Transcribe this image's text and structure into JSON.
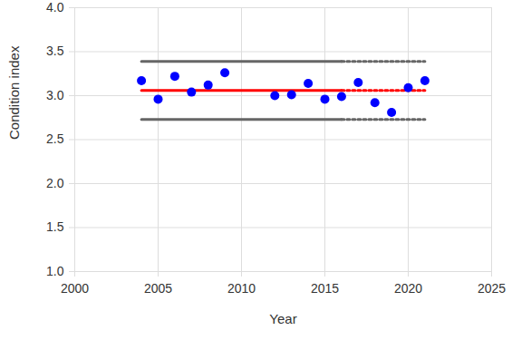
{
  "chart_data": {
    "type": "scatter",
    "xlabel": "Year",
    "ylabel": "Condition index",
    "xlim": [
      2000,
      2025
    ],
    "xticks": [
      2000,
      2005,
      2010,
      2015,
      2020,
      2025
    ],
    "ylim": [
      1,
      4
    ],
    "yticks": [
      {
        "value": 1,
        "label": "1.0"
      },
      {
        "value": 1.5,
        "label": "1.5"
      },
      {
        "value": 2,
        "label": "2.0"
      },
      {
        "value": 2.5,
        "label": "2.5"
      },
      {
        "value": 3,
        "label": "3.0"
      },
      {
        "value": 3.5,
        "label": "3.5"
      },
      {
        "value": 4,
        "label": "4.0"
      }
    ],
    "grid": true,
    "series": [
      {
        "type": "scatter",
        "color": "#0000ff",
        "marker": "circle",
        "x": [
          2004,
          2005,
          2006,
          2007,
          2008,
          2009,
          2012,
          2013,
          2014,
          2015,
          2016,
          2017,
          2018,
          2019,
          2020,
          2021
        ],
        "values": [
          3.17,
          2.96,
          3.22,
          3.04,
          3.12,
          3.26,
          3.0,
          3.01,
          3.14,
          2.96,
          2.99,
          3.15,
          2.92,
          2.81,
          3.09,
          3.17
        ]
      },
      {
        "type": "line",
        "color": "#ff0000",
        "line_style": "solid",
        "x": [
          2004,
          2016
        ],
        "values": [
          3.06,
          3.06
        ]
      },
      {
        "type": "line",
        "color": "#ff0000",
        "line_style": "dotted",
        "x": [
          2016,
          2021
        ],
        "values": [
          3.06,
          3.06
        ]
      },
      {
        "type": "line",
        "color": "#666666",
        "line_style": "solid",
        "x": [
          2004,
          2016
        ],
        "values": [
          3.39,
          3.39
        ]
      },
      {
        "type": "line",
        "color": "#666666",
        "line_style": "dotted",
        "x": [
          2016,
          2021
        ],
        "values": [
          3.39,
          3.39
        ]
      },
      {
        "type": "line",
        "color": "#666666",
        "line_style": "solid",
        "x": [
          2004,
          2016
        ],
        "values": [
          2.73,
          2.73
        ]
      },
      {
        "type": "line",
        "color": "#666666",
        "line_style": "dotted",
        "x": [
          2016,
          2021
        ],
        "values": [
          2.73,
          2.73
        ]
      }
    ]
  }
}
